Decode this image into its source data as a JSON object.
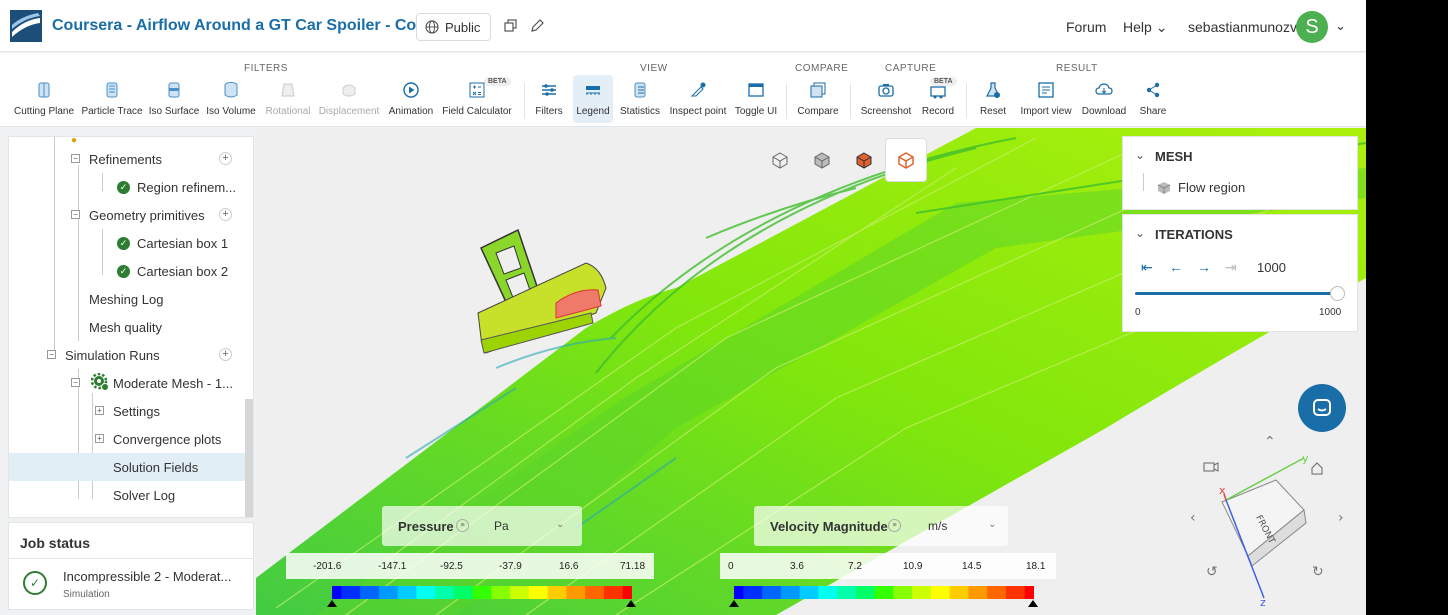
{
  "header": {
    "project_title": "Coursera - Airflow Around a GT Car Spoiler - Copy",
    "visibility": "Public",
    "forum": "Forum",
    "help": "Help",
    "username": "sebastianmunozv",
    "avatar_letter": "S"
  },
  "toolbar": {
    "groups": {
      "filters": "FILTERS",
      "view": "VIEW",
      "compare": "COMPARE",
      "capture": "CAPTURE",
      "result": "RESULT"
    },
    "tools": {
      "cutting_plane": "Cutting Plane",
      "particle_trace": "Particle Trace",
      "iso_surface": "Iso Surface",
      "iso_volume": "Iso Volume",
      "rotational": "Rotational",
      "displacement": "Displacement",
      "animation": "Animation",
      "field_calculator": "Field Calculator",
      "filters": "Filters",
      "legend": "Legend",
      "statistics": "Statistics",
      "inspect_point": "Inspect point",
      "toggle_ui": "Toggle UI",
      "compare": "Compare",
      "screenshot": "Screenshot",
      "record": "Record",
      "reset": "Reset",
      "import_view": "Import view",
      "download": "Download",
      "share": "Share"
    },
    "beta": "BETA"
  },
  "tree": {
    "refinements": "Refinements",
    "region_refinement": "Region refinem...",
    "geometry_primitives": "Geometry primitives",
    "cartesian_box_1": "Cartesian box 1",
    "cartesian_box_2": "Cartesian box 2",
    "meshing_log": "Meshing Log",
    "mesh_quality": "Mesh quality",
    "simulation_runs": "Simulation Runs",
    "moderate_mesh": "Moderate Mesh - 1...",
    "settings": "Settings",
    "convergence_plots": "Convergence plots",
    "solution_fields": "Solution Fields",
    "solver_log": "Solver Log"
  },
  "job_status": {
    "title": "Job status",
    "job_name": "Incompressible 2 - Moderat...",
    "job_type": "Simulation"
  },
  "mesh_panel": {
    "title": "MESH",
    "item": "Flow region"
  },
  "iterations_panel": {
    "title": "ITERATIONS",
    "value": "1000",
    "min": "0",
    "max": "1000",
    "slider_fraction": 1.0
  },
  "legend_pressure": {
    "label": "Pressure",
    "unit": "Pa",
    "ticks": [
      "-201.6",
      "-147.1",
      "-92.5",
      "-37.9",
      "16.6",
      "71.18"
    ]
  },
  "legend_velocity": {
    "label": "Velocity Magnitude",
    "unit": "m/s",
    "ticks": [
      "0",
      "3.6",
      "7.2",
      "10.9",
      "14.5",
      "18.1"
    ]
  },
  "colors": {
    "brand_blue": "#1a6ea8",
    "success_green": "#2e7d32",
    "avatar_green": "#4caf50",
    "streamline_green": "#66e000"
  },
  "orientation": {
    "front_label": "FRONT",
    "x": "x",
    "y": "y",
    "z": "z"
  }
}
